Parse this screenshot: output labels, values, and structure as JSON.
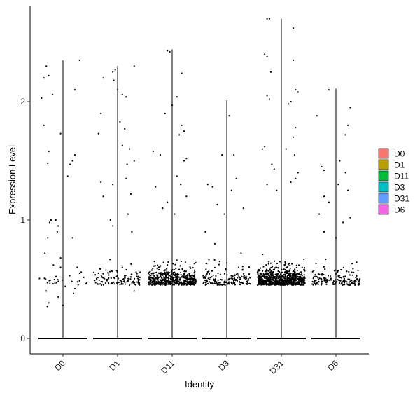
{
  "chart_data": {
    "type": "scatter",
    "subtype": "violin-jitter",
    "title": "",
    "xlabel": "Identity",
    "ylabel": "Expression Level",
    "categories": [
      "D0",
      "D1",
      "D11",
      "D3",
      "D31",
      "D6"
    ],
    "ylim": [
      -0.15,
      2.8
    ],
    "yticks": [
      0,
      1,
      2
    ],
    "ytick_labels": [
      "0",
      "1",
      "2"
    ],
    "grid": false,
    "legend": {
      "placement": "right",
      "entries": [
        {
          "label": "D0",
          "color": "#F8766D"
        },
        {
          "label": "D1",
          "color": "#B79F00"
        },
        {
          "label": "D11",
          "color": "#00BA38"
        },
        {
          "label": "D3",
          "color": "#00BFC4"
        },
        {
          "label": "D31",
          "color": "#619CFF"
        },
        {
          "label": "D6",
          "color": "#F564E3"
        }
      ]
    },
    "series": [
      {
        "group": "D0",
        "max": 2.35,
        "nonzero": 60,
        "points_high": [
          [
            -0.4,
            2.2
          ],
          [
            -0.35,
            2.3
          ],
          [
            -0.3,
            2.22
          ],
          [
            -0.45,
            2.03
          ],
          [
            -0.22,
            2.06
          ],
          [
            0.35,
            2.35
          ],
          [
            0.25,
            2.1
          ],
          [
            0.1,
            1.37
          ],
          [
            -0.05,
            1.73
          ],
          [
            -0.4,
            1.8
          ],
          [
            -0.3,
            1.58
          ],
          [
            -0.32,
            1.48
          ],
          [
            0.2,
            1.5
          ],
          [
            0.15,
            1.47
          ],
          [
            0.25,
            1.55
          ],
          [
            -0.25,
            1.0
          ],
          [
            -0.28,
            0.98
          ],
          [
            -0.15,
            1.0
          ],
          [
            -0.1,
            0.95
          ],
          [
            -0.12,
            0.9
          ],
          [
            0.2,
            0.85
          ],
          [
            0.3,
            0.6
          ],
          [
            0.35,
            0.55
          ],
          [
            -0.2,
            0.62
          ],
          [
            -0.05,
            0.6
          ],
          [
            0.05,
            0.44
          ],
          [
            0.22,
            0.38
          ],
          [
            0.25,
            0.42
          ],
          [
            -0.35,
            0.4
          ],
          [
            -0.33,
            0.27
          ],
          [
            -0.3,
            0.3
          ],
          [
            -0.1,
            0.35
          ],
          [
            0.0,
            0.28
          ],
          [
            -0.38,
            0.72
          ],
          [
            -0.32,
            0.85
          ],
          [
            -0.05,
            0.68
          ]
        ]
      },
      {
        "group": "D1",
        "max": 2.3,
        "nonzero": 140,
        "points_high": [
          [
            -0.1,
            2.25
          ],
          [
            -0.05,
            2.27
          ],
          [
            0.35,
            2.3
          ],
          [
            -0.3,
            2.2
          ],
          [
            -0.08,
            2.18
          ],
          [
            0.0,
            2.1
          ],
          [
            0.1,
            2.06
          ],
          [
            0.18,
            2.04
          ],
          [
            -0.35,
            1.9
          ],
          [
            0.05,
            1.83
          ],
          [
            0.15,
            1.77
          ],
          [
            -0.4,
            1.73
          ],
          [
            0.1,
            1.63
          ],
          [
            0.25,
            1.6
          ],
          [
            0.35,
            1.5
          ],
          [
            0.2,
            1.47
          ],
          [
            -0.35,
            1.32
          ],
          [
            -0.3,
            1.2
          ],
          [
            -0.1,
            1.3
          ],
          [
            0.18,
            1.35
          ],
          [
            0.28,
            1.22
          ],
          [
            -0.15,
            1.0
          ],
          [
            -0.1,
            0.95
          ],
          [
            0.22,
            1.05
          ],
          [
            0.3,
            0.9
          ],
          [
            -0.4,
            0.55
          ],
          [
            -0.2,
            0.5
          ],
          [
            0.1,
            0.6
          ],
          [
            0.25,
            0.45
          ],
          [
            0.35,
            0.4
          ]
        ]
      },
      {
        "group": "D11",
        "max": 2.44,
        "nonzero": 520,
        "points_high": [
          [
            -0.1,
            2.43
          ],
          [
            -0.05,
            2.42
          ],
          [
            0.2,
            2.24
          ],
          [
            0.1,
            2.04
          ],
          [
            0.0,
            1.97
          ],
          [
            -0.15,
            1.9
          ],
          [
            0.2,
            1.8
          ],
          [
            0.25,
            1.75
          ],
          [
            0.15,
            1.72
          ],
          [
            -0.4,
            1.58
          ],
          [
            -0.25,
            1.55
          ],
          [
            0.3,
            1.52
          ],
          [
            0.25,
            1.5
          ],
          [
            0.1,
            1.37
          ],
          [
            0.18,
            1.3
          ],
          [
            -0.35,
            1.28
          ],
          [
            0.3,
            1.2
          ],
          [
            -0.1,
            1.15
          ],
          [
            -0.2,
            1.1
          ],
          [
            0.05,
            1.05
          ]
        ]
      },
      {
        "group": "D3",
        "max": 2.01,
        "nonzero": 170,
        "points_high": [
          [
            0.05,
            1.88
          ],
          [
            -0.1,
            1.55
          ],
          [
            0.15,
            1.55
          ],
          [
            0.2,
            1.35
          ],
          [
            -0.4,
            1.3
          ],
          [
            -0.3,
            1.28
          ],
          [
            0.1,
            1.25
          ],
          [
            -0.2,
            1.13
          ],
          [
            0.35,
            1.1
          ],
          [
            -0.05,
            1.05
          ],
          [
            -0.45,
            0.9
          ],
          [
            -0.25,
            0.8
          ],
          [
            0.3,
            0.72
          ],
          [
            -0.15,
            0.65
          ],
          [
            0.25,
            0.6
          ]
        ]
      },
      {
        "group": "D31",
        "max": 2.7,
        "nonzero": 800,
        "points_high": [
          [
            -0.3,
            2.7
          ],
          [
            -0.25,
            2.7
          ],
          [
            0.25,
            2.62
          ],
          [
            -0.35,
            2.4
          ],
          [
            -0.3,
            2.38
          ],
          [
            0.25,
            2.35
          ],
          [
            -0.22,
            2.25
          ],
          [
            0.3,
            2.1
          ],
          [
            0.35,
            2.08
          ],
          [
            -0.3,
            2.05
          ],
          [
            -0.25,
            2.02
          ],
          [
            0.2,
            2.0
          ],
          [
            0.15,
            1.98
          ],
          [
            -0.35,
            1.62
          ],
          [
            -0.4,
            1.6
          ],
          [
            0.3,
            1.78
          ],
          [
            0.25,
            1.7
          ],
          [
            0.1,
            1.6
          ],
          [
            0.28,
            1.55
          ],
          [
            -0.2,
            1.47
          ],
          [
            -0.15,
            1.43
          ],
          [
            0.35,
            1.4
          ],
          [
            0.3,
            1.35
          ],
          [
            0.2,
            1.32
          ],
          [
            -0.3,
            1.3
          ],
          [
            -0.1,
            1.25
          ]
        ]
      },
      {
        "group": "D6",
        "max": 2.11,
        "nonzero": 190,
        "points_high": [
          [
            -0.15,
            2.1
          ],
          [
            0.3,
            1.95
          ],
          [
            0.25,
            1.8
          ],
          [
            -0.4,
            1.88
          ],
          [
            0.2,
            1.72
          ],
          [
            0.08,
            1.5
          ],
          [
            -0.3,
            1.45
          ],
          [
            -0.25,
            1.42
          ],
          [
            0.2,
            1.4
          ],
          [
            0.05,
            1.3
          ],
          [
            -0.25,
            1.2
          ],
          [
            -0.15,
            1.15
          ],
          [
            0.25,
            1.25
          ],
          [
            -0.35,
            1.05
          ],
          [
            0.3,
            1.02
          ],
          [
            0.15,
            0.98
          ],
          [
            -0.25,
            0.9
          ],
          [
            0.0,
            0.85
          ]
        ]
      }
    ]
  }
}
